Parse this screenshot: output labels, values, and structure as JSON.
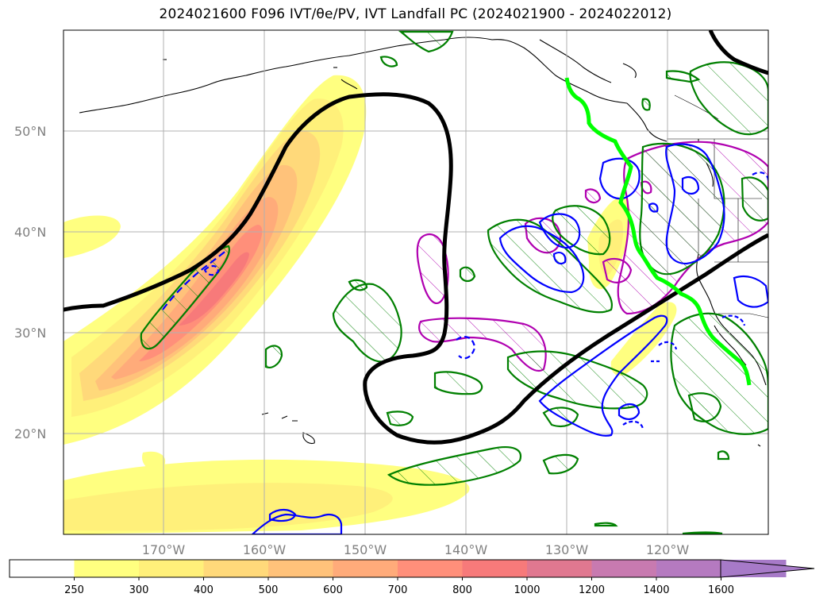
{
  "title": "2024021600 F096 IVT/θe/PV, IVT Landfall PC (2024021900 - 2024022012)",
  "map": {
    "lon_range": [
      -180,
      -110
    ],
    "lat_range": [
      10,
      60
    ],
    "lat_gridlines": [
      20,
      30,
      40,
      50
    ],
    "lon_gridlines": [
      -170,
      -160,
      -150,
      -140,
      -130,
      -120
    ],
    "lat_labels": [
      "20°N",
      "30°N",
      "40°N",
      "50°N"
    ],
    "lon_labels": [
      "170°W",
      "160°W",
      "150°W",
      "140°W",
      "130°W",
      "120°W"
    ]
  },
  "colorbar": {
    "levels": [
      "250",
      "300",
      "400",
      "500",
      "600",
      "700",
      "800",
      "1000",
      "1200",
      "1400",
      "1600"
    ],
    "colors": [
      "#ffffff",
      "#ffff80",
      "#fff07a",
      "#ffd97a",
      "#ffc27a",
      "#ffab7a",
      "#ff8f7a",
      "#f77a7a",
      "#e07890",
      "#c87ab0",
      "#b57ac0",
      "#a77ac8"
    ],
    "extend": "max"
  },
  "legend_colors": {
    "ivt_fill": "#ff7a7a",
    "pv_contour": "#000000",
    "theta_pos": "#008000",
    "theta_neg": "#0000ff",
    "pc_contour": "#b000b0",
    "landfall_line": "#00ff00"
  }
}
